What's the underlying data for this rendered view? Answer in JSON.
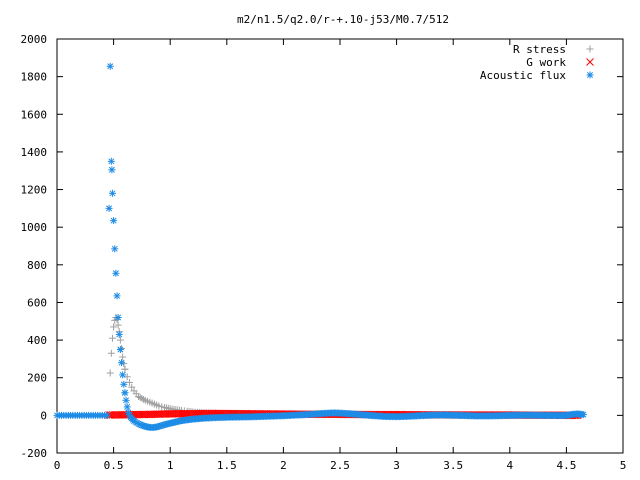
{
  "chart_data": {
    "type": "scatter",
    "title": "m2/n1.5/q2.0/r-+.10-j53/M0.7/512",
    "xlabel": "",
    "ylabel": "",
    "xlim": [
      0,
      5
    ],
    "ylim": [
      -200,
      2000
    ],
    "x_ticks": [
      "0",
      "0.5",
      "1",
      "1.5",
      "2",
      "2.5",
      "3",
      "3.5",
      "4",
      "4.5",
      "5"
    ],
    "y_ticks": [
      "-200",
      "0",
      "200",
      "400",
      "600",
      "800",
      "1000",
      "1200",
      "1400",
      "1600",
      "1800",
      "2000"
    ],
    "grid": false,
    "legend_position": "top-right",
    "series": [
      {
        "name": "R stress",
        "marker": "+",
        "color": "#a0a0a0",
        "points": [
          [
            0.47,
            225
          ],
          [
            0.48,
            330
          ],
          [
            0.49,
            410
          ],
          [
            0.5,
            470
          ],
          [
            0.51,
            505
          ],
          [
            0.52,
            520
          ],
          [
            0.53,
            510
          ],
          [
            0.54,
            480
          ],
          [
            0.55,
            445
          ],
          [
            0.56,
            400
          ],
          [
            0.57,
            355
          ],
          [
            0.58,
            310
          ],
          [
            0.59,
            275
          ],
          [
            0.6,
            245
          ],
          [
            0.62,
            205
          ],
          [
            0.64,
            175
          ],
          [
            0.66,
            150
          ],
          [
            0.68,
            130
          ],
          [
            0.7,
            115
          ],
          [
            0.72,
            100
          ],
          [
            0.75,
            90
          ],
          [
            0.78,
            80
          ],
          [
            0.82,
            70
          ],
          [
            0.86,
            60
          ],
          [
            0.9,
            50
          ],
          [
            0.95,
            42
          ],
          [
            1.0,
            35
          ],
          [
            1.05,
            30
          ],
          [
            1.1,
            26
          ],
          [
            1.15,
            22
          ],
          [
            1.2,
            18
          ],
          [
            1.3,
            14
          ],
          [
            1.4,
            11
          ],
          [
            1.5,
            9
          ],
          [
            1.7,
            7
          ],
          [
            2.0,
            5
          ],
          [
            2.5,
            4
          ],
          [
            3.0,
            3
          ],
          [
            3.5,
            2
          ],
          [
            4.0,
            2
          ],
          [
            4.6,
            1
          ]
        ]
      },
      {
        "name": "G work",
        "marker": "x",
        "color": "#ff0000",
        "points": [
          [
            0.46,
            2
          ],
          [
            0.6,
            3
          ],
          [
            0.8,
            5
          ],
          [
            1.0,
            8
          ],
          [
            1.2,
            9
          ],
          [
            1.4,
            10
          ],
          [
            1.6,
            9
          ],
          [
            1.8,
            8
          ],
          [
            2.0,
            7
          ],
          [
            2.2,
            6
          ],
          [
            2.4,
            6
          ],
          [
            2.6,
            5
          ],
          [
            2.8,
            4
          ],
          [
            3.0,
            4
          ],
          [
            3.2,
            3
          ],
          [
            3.4,
            3
          ],
          [
            3.6,
            2
          ],
          [
            3.8,
            2
          ],
          [
            4.0,
            2
          ],
          [
            4.2,
            1
          ],
          [
            4.4,
            1
          ],
          [
            4.6,
            0
          ]
        ]
      },
      {
        "name": "Acoustic flux",
        "marker": "*",
        "color": "#1e8ce6",
        "points": [
          [
            0.46,
            1100
          ],
          [
            0.47,
            1855
          ],
          [
            0.48,
            1350
          ],
          [
            0.485,
            1305
          ],
          [
            0.49,
            1180
          ],
          [
            0.5,
            1035
          ],
          [
            0.51,
            885
          ],
          [
            0.52,
            755
          ],
          [
            0.53,
            635
          ],
          [
            0.54,
            520
          ],
          [
            0.55,
            430
          ],
          [
            0.56,
            350
          ],
          [
            0.57,
            280
          ],
          [
            0.58,
            215
          ],
          [
            0.59,
            165
          ],
          [
            0.6,
            120
          ],
          [
            0.61,
            80
          ],
          [
            0.62,
            45
          ],
          [
            0.63,
            15
          ],
          [
            0.65,
            -10
          ],
          [
            0.68,
            -30
          ],
          [
            0.72,
            -45
          ],
          [
            0.76,
            -55
          ],
          [
            0.8,
            -62
          ],
          [
            0.84,
            -65
          ],
          [
            0.88,
            -62
          ],
          [
            0.92,
            -55
          ],
          [
            0.96,
            -48
          ],
          [
            1.0,
            -42
          ],
          [
            1.05,
            -35
          ],
          [
            1.1,
            -28
          ],
          [
            1.2,
            -20
          ],
          [
            1.3,
            -15
          ],
          [
            1.4,
            -12
          ],
          [
            1.5,
            -10
          ],
          [
            1.6,
            -9
          ],
          [
            1.7,
            -8
          ],
          [
            1.8,
            -6
          ],
          [
            1.9,
            -4
          ],
          [
            2.0,
            -2
          ],
          [
            2.1,
            1
          ],
          [
            2.2,
            4
          ],
          [
            2.3,
            8
          ],
          [
            2.4,
            12
          ],
          [
            2.45,
            13
          ],
          [
            2.5,
            12
          ],
          [
            2.6,
            8
          ],
          [
            2.7,
            3
          ],
          [
            2.8,
            -2
          ],
          [
            2.9,
            -6
          ],
          [
            3.0,
            -7
          ],
          [
            3.1,
            -5
          ],
          [
            3.2,
            -2
          ],
          [
            3.3,
            1
          ],
          [
            3.4,
            2
          ],
          [
            3.5,
            1
          ],
          [
            3.6,
            -1
          ],
          [
            3.7,
            -3
          ],
          [
            3.8,
            -3
          ],
          [
            3.9,
            -2
          ],
          [
            4.0,
            0
          ],
          [
            4.1,
            1
          ],
          [
            4.2,
            1
          ],
          [
            4.3,
            0
          ],
          [
            4.4,
            -1
          ],
          [
            4.5,
            0
          ],
          [
            4.55,
            5
          ],
          [
            4.6,
            8
          ],
          [
            4.65,
            4
          ]
        ],
        "baseline_left": [
          0.0,
          0.46,
          0
        ]
      }
    ]
  }
}
